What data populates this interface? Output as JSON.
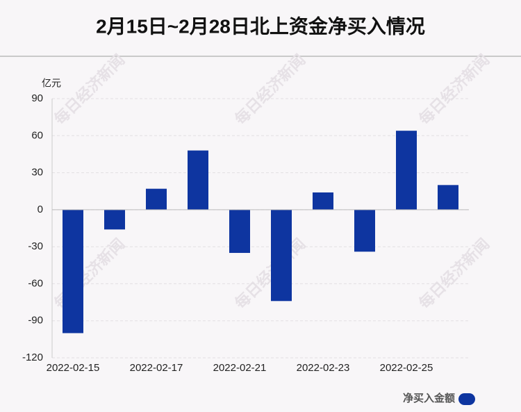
{
  "chart_data": {
    "type": "bar",
    "title": "2月15日~2月28日北上资金净买入情况",
    "y_unit": "亿元",
    "categories": [
      "2022-02-15",
      null,
      "2022-02-17",
      null,
      "2022-02-21",
      null,
      "2022-02-23",
      null,
      "2022-02-25",
      null
    ],
    "series": [
      {
        "name": "净买入金额",
        "color": "#0e35a0",
        "values": [
          -100,
          -16,
          17,
          48,
          -35,
          -74,
          14,
          -34,
          64,
          20
        ]
      }
    ],
    "ylim": [
      -120,
      90
    ],
    "yticks": [
      -120,
      -90,
      -60,
      -30,
      0,
      30,
      60,
      90
    ],
    "grid": true,
    "legend": "bottom-right",
    "watermark": "每日经济新闻"
  }
}
